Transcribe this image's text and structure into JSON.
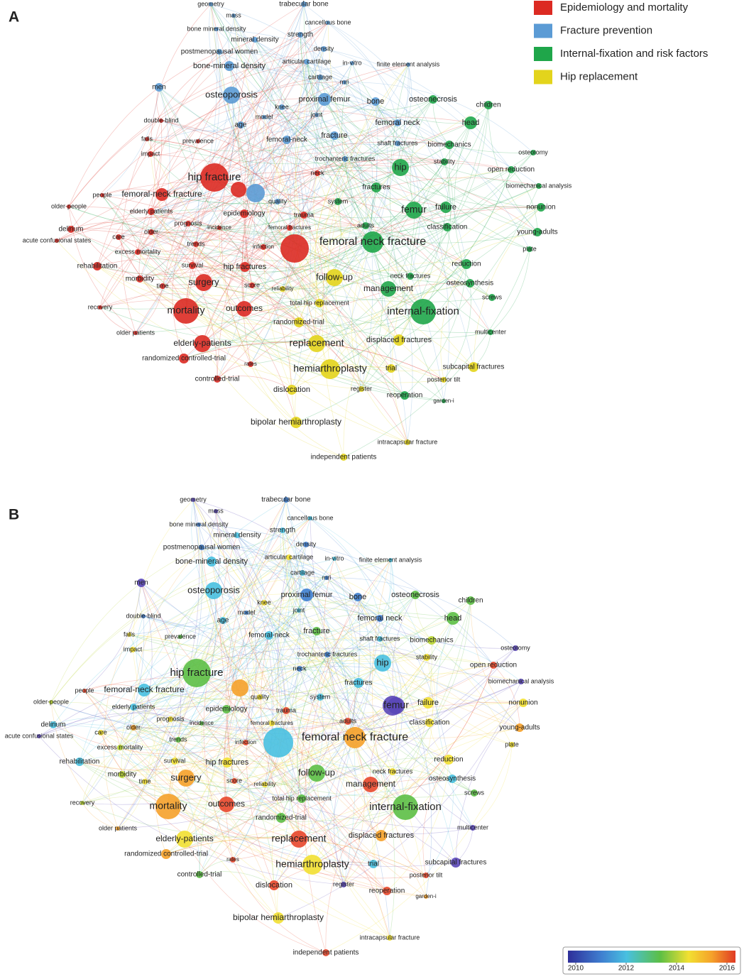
{
  "panels": [
    {
      "label": "A"
    },
    {
      "label": "B"
    }
  ],
  "legend": [
    {
      "name": "Epidemiology and mortality",
      "color": "#dc2a22"
    },
    {
      "name": "Fracture prevention",
      "color": "#5b9bd5"
    },
    {
      "name": "Internal-fixation and risk factors",
      "color": "#1fa64a"
    },
    {
      "name": "Hip replacement",
      "color": "#e3d41c"
    }
  ],
  "keywords": [
    "geometry",
    "mass",
    "trabecular bone",
    "cancellous bone",
    "bone mineral density",
    "mineral density",
    "strength",
    "density",
    "postmenopausal women",
    "articular cartilage",
    "in-vitro",
    "finite element analysis",
    "bone-mineral density",
    "cartilage",
    "mri",
    "men",
    "osteoporosis",
    "proximal femur",
    "bone",
    "knee",
    "joint",
    "model",
    "age",
    "fracture",
    "femoral-neck",
    "femoral neck",
    "shaft fractures",
    "trochanteric fractures",
    "quality",
    "double-blind",
    "falls",
    "prevalence",
    "impact",
    "hip fracture",
    "neck",
    "people",
    "femoral-neck fracture",
    "older-people",
    "elderly patients",
    "epidemiology",
    "delirium",
    "prognosis",
    "incidence",
    "femoral fractures",
    "care",
    "older",
    "acute confusional states",
    "trends",
    "infection",
    "excess mortality",
    "rehabilitation",
    "survival",
    "hip fractures",
    "trauma",
    "morbidity",
    "time",
    "surgery",
    "score",
    "recovery",
    "mortality",
    "outcomes",
    "older patients",
    "elderly-patients",
    "randomized controlled-trial",
    "rates",
    "controlled-trial",
    "osteonecrosis",
    "children",
    "head",
    "biomechanics",
    "osteotomy",
    "stability",
    "hip",
    "open reduction",
    "fractures",
    "system",
    "biomechanical analysis",
    "femur",
    "failure",
    "nonunion",
    "adults",
    "classification",
    "young-adults",
    "femoral neck fracture",
    "plate",
    "reduction",
    "neck fractures",
    "osteosynthesis",
    "management",
    "screws",
    "internal-fixation",
    "multicenter",
    "reoperation",
    "garden-i",
    "follow-up",
    "reliability",
    "total hip replacement",
    "randomized-trial",
    "replacement",
    "displaced fractures",
    "hemiarthroplasty",
    "trial",
    "subcapital fractures",
    "posterior tilt",
    "register",
    "dislocation",
    "bipolar hemiarthroplasty",
    "intracapsular fracture",
    "independent patients"
  ],
  "colorbar": {
    "ticks": [
      2010,
      2012,
      2014,
      2016
    ]
  }
}
